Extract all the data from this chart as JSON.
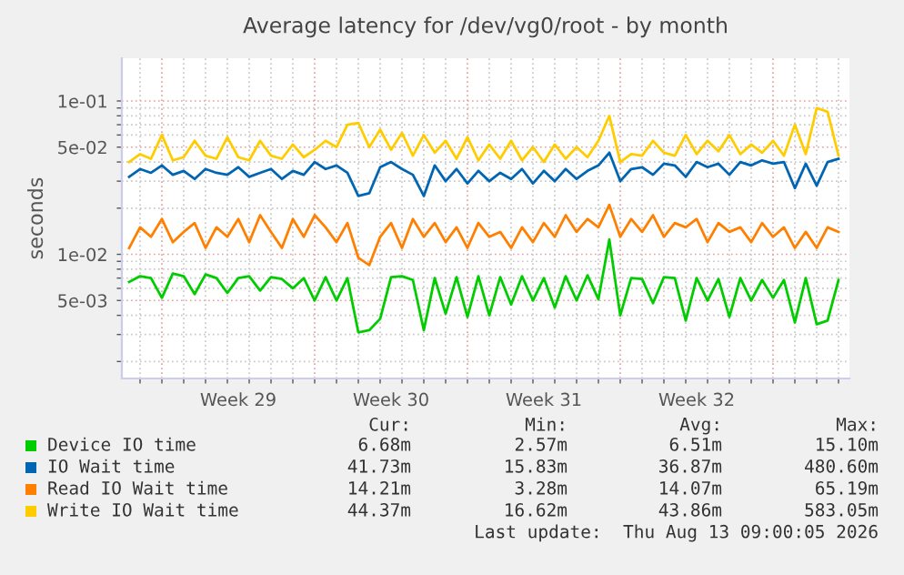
{
  "chart_data": {
    "type": "line",
    "title": "Average latency for /dev/vg0/root - by month",
    "ylabel": "seconds",
    "x": [
      "2026-07-11T12:00",
      "2026-07-12T00:00",
      "2026-07-12T12:00",
      "2026-07-13T00:00",
      "2026-07-13T12:00",
      "2026-07-14T00:00",
      "2026-07-14T12:00",
      "2026-07-15T00:00",
      "2026-07-15T12:00",
      "2026-07-16T00:00",
      "2026-07-16T12:00",
      "2026-07-17T00:00",
      "2026-07-17T12:00",
      "2026-07-18T00:00",
      "2026-07-18T12:00",
      "2026-07-19T00:00",
      "2026-07-19T12:00",
      "2026-07-20T00:00",
      "2026-07-20T12:00",
      "2026-07-21T00:00",
      "2026-07-21T12:00",
      "2026-07-22T00:00",
      "2026-07-22T12:00",
      "2026-07-23T00:00",
      "2026-07-23T12:00",
      "2026-07-24T00:00",
      "2026-07-24T12:00",
      "2026-07-25T00:00",
      "2026-07-25T12:00",
      "2026-07-26T00:00",
      "2026-07-26T12:00",
      "2026-07-27T00:00",
      "2026-07-27T12:00",
      "2026-07-28T00:00",
      "2026-07-28T12:00",
      "2026-07-29T00:00",
      "2026-07-29T12:00",
      "2026-07-30T00:00",
      "2026-07-30T12:00",
      "2026-07-31T00:00",
      "2026-07-31T12:00",
      "2026-08-01T00:00",
      "2026-08-01T12:00",
      "2026-08-02T00:00",
      "2026-08-02T12:00",
      "2026-08-03T00:00",
      "2026-08-03T12:00",
      "2026-08-04T00:00",
      "2026-08-04T12:00",
      "2026-08-05T00:00",
      "2026-08-05T12:00",
      "2026-08-06T00:00",
      "2026-08-06T12:00",
      "2026-08-07T00:00",
      "2026-08-07T12:00",
      "2026-08-08T00:00",
      "2026-08-08T12:00",
      "2026-08-09T00:00",
      "2026-08-09T12:00",
      "2026-08-10T00:00",
      "2026-08-10T12:00",
      "2026-08-11T00:00",
      "2026-08-11T12:00",
      "2026-08-12T00:00",
      "2026-08-12T12:00",
      "2026-08-13T00:00"
    ],
    "series": [
      {
        "name": "Device IO time",
        "color": "#00cc00",
        "values": [
          0.0066,
          0.0072,
          0.007,
          0.0052,
          0.0075,
          0.0072,
          0.0055,
          0.0074,
          0.007,
          0.0056,
          0.007,
          0.0072,
          0.0058,
          0.0071,
          0.0069,
          0.006,
          0.007,
          0.005,
          0.0071,
          0.005,
          0.007,
          0.0031,
          0.0032,
          0.0038,
          0.0071,
          0.0072,
          0.0068,
          0.0032,
          0.007,
          0.0041,
          0.0071,
          0.0039,
          0.0072,
          0.004,
          0.0071,
          0.0047,
          0.0072,
          0.005,
          0.007,
          0.0045,
          0.0072,
          0.005,
          0.0073,
          0.0051,
          0.0125,
          0.004,
          0.007,
          0.0069,
          0.0048,
          0.0071,
          0.007,
          0.0037,
          0.007,
          0.005,
          0.0069,
          0.0039,
          0.007,
          0.005,
          0.0068,
          0.0052,
          0.0068,
          0.0036,
          0.007,
          0.0035,
          0.0037,
          0.0068
        ]
      },
      {
        "name": "IO Wait time",
        "color": "#0066b3",
        "values": [
          0.032,
          0.036,
          0.034,
          0.038,
          0.033,
          0.035,
          0.031,
          0.036,
          0.034,
          0.033,
          0.037,
          0.032,
          0.034,
          0.036,
          0.031,
          0.035,
          0.033,
          0.04,
          0.036,
          0.038,
          0.034,
          0.024,
          0.025,
          0.037,
          0.04,
          0.036,
          0.033,
          0.024,
          0.038,
          0.03,
          0.036,
          0.029,
          0.035,
          0.03,
          0.034,
          0.031,
          0.036,
          0.029,
          0.035,
          0.03,
          0.036,
          0.031,
          0.035,
          0.038,
          0.046,
          0.03,
          0.036,
          0.037,
          0.033,
          0.039,
          0.038,
          0.032,
          0.04,
          0.037,
          0.039,
          0.033,
          0.04,
          0.038,
          0.041,
          0.039,
          0.04,
          0.027,
          0.039,
          0.028,
          0.04,
          0.042
        ]
      },
      {
        "name": "Read IO Wait time",
        "color": "#ff8000",
        "values": [
          0.011,
          0.015,
          0.013,
          0.017,
          0.012,
          0.014,
          0.016,
          0.011,
          0.015,
          0.013,
          0.017,
          0.012,
          0.018,
          0.014,
          0.011,
          0.017,
          0.013,
          0.018,
          0.015,
          0.012,
          0.016,
          0.0095,
          0.0085,
          0.013,
          0.016,
          0.011,
          0.017,
          0.013,
          0.016,
          0.012,
          0.015,
          0.011,
          0.016,
          0.013,
          0.014,
          0.011,
          0.015,
          0.012,
          0.016,
          0.013,
          0.018,
          0.014,
          0.017,
          0.015,
          0.021,
          0.013,
          0.017,
          0.014,
          0.018,
          0.013,
          0.016,
          0.015,
          0.017,
          0.012,
          0.016,
          0.014,
          0.015,
          0.012,
          0.016,
          0.013,
          0.015,
          0.011,
          0.014,
          0.011,
          0.015,
          0.014
        ]
      },
      {
        "name": "Write IO Wait time",
        "color": "#ffcc00",
        "values": [
          0.04,
          0.045,
          0.042,
          0.06,
          0.041,
          0.043,
          0.055,
          0.044,
          0.042,
          0.058,
          0.043,
          0.041,
          0.055,
          0.044,
          0.042,
          0.052,
          0.043,
          0.048,
          0.055,
          0.05,
          0.07,
          0.072,
          0.05,
          0.065,
          0.048,
          0.062,
          0.044,
          0.06,
          0.046,
          0.055,
          0.042,
          0.058,
          0.041,
          0.052,
          0.042,
          0.055,
          0.041,
          0.05,
          0.04,
          0.052,
          0.042,
          0.05,
          0.043,
          0.055,
          0.08,
          0.04,
          0.045,
          0.044,
          0.055,
          0.046,
          0.044,
          0.06,
          0.045,
          0.055,
          0.047,
          0.06,
          0.045,
          0.052,
          0.046,
          0.055,
          0.044,
          0.07,
          0.045,
          0.09,
          0.085,
          0.044
        ]
      }
    ],
    "log": "y",
    "ylim": [
      0.00155,
      0.19
    ],
    "yticks": [
      {
        "value": 0.002,
        "label": null
      },
      {
        "value": 0.003,
        "label": null
      },
      {
        "value": 0.004,
        "label": null
      },
      {
        "value": 0.005,
        "label": "5e-03"
      },
      {
        "value": 0.006,
        "label": null
      },
      {
        "value": 0.007,
        "label": null
      },
      {
        "value": 0.008,
        "label": null
      },
      {
        "value": 0.009,
        "label": null
      },
      {
        "value": 0.01,
        "label": "1e-02"
      },
      {
        "value": 0.02,
        "label": null
      },
      {
        "value": 0.03,
        "label": null
      },
      {
        "value": 0.04,
        "label": null
      },
      {
        "value": 0.05,
        "label": "5e-02"
      },
      {
        "value": 0.06,
        "label": null
      },
      {
        "value": 0.07,
        "label": null
      },
      {
        "value": 0.08,
        "label": null
      },
      {
        "value": 0.09,
        "label": null
      },
      {
        "value": 0.1,
        "label": "1e-01"
      }
    ],
    "xlim": [
      "2026-07-11T04:00",
      "2026-08-13T12:00"
    ],
    "xticks": [
      {
        "value": "2026-07-12",
        "label": null
      },
      {
        "value": "2026-07-13",
        "label": null
      },
      {
        "value": "2026-07-14",
        "label": null
      },
      {
        "value": "2026-07-15",
        "label": null
      },
      {
        "value": "2026-07-16",
        "label": null
      },
      {
        "value": "2026-07-16T12:00",
        "label": "Week 29"
      },
      {
        "value": "2026-07-17",
        "label": null
      },
      {
        "value": "2026-07-18",
        "label": null
      },
      {
        "value": "2026-07-19",
        "label": null
      },
      {
        "value": "2026-07-20",
        "label": null
      },
      {
        "value": "2026-07-21",
        "label": null
      },
      {
        "value": "2026-07-22",
        "label": null
      },
      {
        "value": "2026-07-23",
        "label": null
      },
      {
        "value": "2026-07-23T12:00",
        "label": "Week 30"
      },
      {
        "value": "2026-07-24",
        "label": null
      },
      {
        "value": "2026-07-25",
        "label": null
      },
      {
        "value": "2026-07-26",
        "label": null
      },
      {
        "value": "2026-07-27",
        "label": null
      },
      {
        "value": "2026-07-28",
        "label": null
      },
      {
        "value": "2026-07-29",
        "label": null
      },
      {
        "value": "2026-07-30",
        "label": null
      },
      {
        "value": "2026-07-30T12:00",
        "label": "Week 31"
      },
      {
        "value": "2026-07-31",
        "label": null
      },
      {
        "value": "2026-08-01",
        "label": null
      },
      {
        "value": "2026-08-02",
        "label": null
      },
      {
        "value": "2026-08-03",
        "label": null
      },
      {
        "value": "2026-08-04",
        "label": null
      },
      {
        "value": "2026-08-05",
        "label": null
      },
      {
        "value": "2026-08-06",
        "label": null
      },
      {
        "value": "2026-08-06T12:00",
        "label": "Week 32"
      },
      {
        "value": "2026-08-07",
        "label": null
      },
      {
        "value": "2026-08-08",
        "label": null
      },
      {
        "value": "2026-08-09",
        "label": null
      },
      {
        "value": "2026-08-10",
        "label": null
      },
      {
        "value": "2026-08-11",
        "label": null
      },
      {
        "value": "2026-08-12",
        "label": null
      },
      {
        "value": "2026-08-13",
        "label": null
      }
    ],
    "grid": true,
    "legend": "bottom",
    "marker": "none",
    "line_style": "solid",
    "annotations": [
      "Cur:",
      "Min:",
      "Avg:",
      "Max:",
      "6.68m",
      "2.57m",
      "6.51m",
      "15.10m",
      "41.73m",
      "15.83m",
      "36.87m",
      "480.60m",
      "14.21m",
      "3.28m",
      "14.07m",
      "65.19m",
      "44.37m",
      "16.62m",
      "43.86m",
      "583.05m",
      "Last update:  Thu Aug 13 09:00:05 2026"
    ]
  }
}
